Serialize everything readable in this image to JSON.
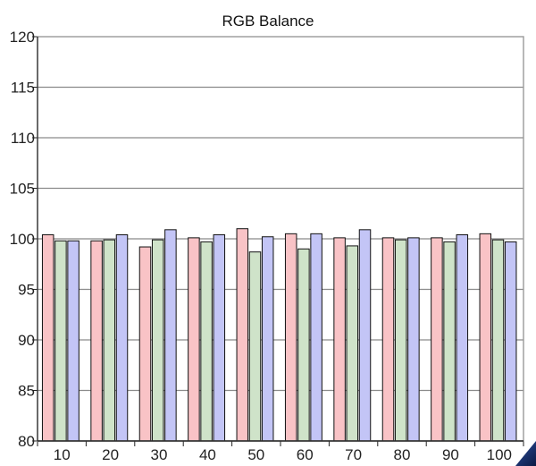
{
  "chart_data": {
    "type": "bar",
    "title": "RGB Balance",
    "xlabel": "",
    "ylabel": "",
    "categories": [
      "10",
      "20",
      "30",
      "40",
      "50",
      "60",
      "70",
      "80",
      "90",
      "100"
    ],
    "ylim": [
      80,
      120
    ],
    "yticks": [
      "80",
      "85",
      "90",
      "95",
      "100",
      "105",
      "110",
      "115",
      "120"
    ],
    "grid": true,
    "legend": "none",
    "series": [
      {
        "color": "#f9c3c6",
        "values": [
          100.4,
          99.8,
          99.2,
          100.1,
          101.0,
          100.5,
          100.1,
          100.1,
          100.1,
          100.5
        ]
      },
      {
        "color": "#cfe3c9",
        "values": [
          99.8,
          99.9,
          99.9,
          99.7,
          98.7,
          99.0,
          99.3,
          99.9,
          99.7,
          99.9
        ]
      },
      {
        "color": "#c3c5f6",
        "values": [
          99.8,
          100.4,
          100.9,
          100.4,
          100.2,
          100.5,
          100.9,
          100.1,
          100.4,
          99.7
        ]
      }
    ]
  }
}
